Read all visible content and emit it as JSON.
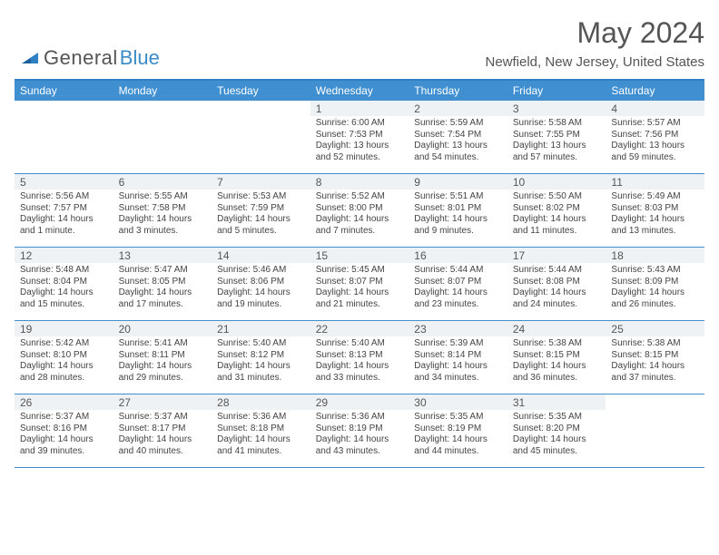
{
  "logo": {
    "text1": "General",
    "text2": "Blue"
  },
  "title": "May 2024",
  "location": "Newfield, New Jersey, United States",
  "colors": {
    "header_bg": "#3f8fd1",
    "header_border": "#2f7fc4",
    "daynum_bg": "#eef2f5",
    "text": "#555555",
    "body_text": "#444444"
  },
  "day_names": [
    "Sunday",
    "Monday",
    "Tuesday",
    "Wednesday",
    "Thursday",
    "Friday",
    "Saturday"
  ],
  "weeks": [
    [
      {
        "n": "",
        "sr": "",
        "ss": "",
        "dl": ""
      },
      {
        "n": "",
        "sr": "",
        "ss": "",
        "dl": ""
      },
      {
        "n": "",
        "sr": "",
        "ss": "",
        "dl": ""
      },
      {
        "n": "1",
        "sr": "6:00 AM",
        "ss": "7:53 PM",
        "dl": "13 hours and 52 minutes."
      },
      {
        "n": "2",
        "sr": "5:59 AM",
        "ss": "7:54 PM",
        "dl": "13 hours and 54 minutes."
      },
      {
        "n": "3",
        "sr": "5:58 AM",
        "ss": "7:55 PM",
        "dl": "13 hours and 57 minutes."
      },
      {
        "n": "4",
        "sr": "5:57 AM",
        "ss": "7:56 PM",
        "dl": "13 hours and 59 minutes."
      }
    ],
    [
      {
        "n": "5",
        "sr": "5:56 AM",
        "ss": "7:57 PM",
        "dl": "14 hours and 1 minute."
      },
      {
        "n": "6",
        "sr": "5:55 AM",
        "ss": "7:58 PM",
        "dl": "14 hours and 3 minutes."
      },
      {
        "n": "7",
        "sr": "5:53 AM",
        "ss": "7:59 PM",
        "dl": "14 hours and 5 minutes."
      },
      {
        "n": "8",
        "sr": "5:52 AM",
        "ss": "8:00 PM",
        "dl": "14 hours and 7 minutes."
      },
      {
        "n": "9",
        "sr": "5:51 AM",
        "ss": "8:01 PM",
        "dl": "14 hours and 9 minutes."
      },
      {
        "n": "10",
        "sr": "5:50 AM",
        "ss": "8:02 PM",
        "dl": "14 hours and 11 minutes."
      },
      {
        "n": "11",
        "sr": "5:49 AM",
        "ss": "8:03 PM",
        "dl": "14 hours and 13 minutes."
      }
    ],
    [
      {
        "n": "12",
        "sr": "5:48 AM",
        "ss": "8:04 PM",
        "dl": "14 hours and 15 minutes."
      },
      {
        "n": "13",
        "sr": "5:47 AM",
        "ss": "8:05 PM",
        "dl": "14 hours and 17 minutes."
      },
      {
        "n": "14",
        "sr": "5:46 AM",
        "ss": "8:06 PM",
        "dl": "14 hours and 19 minutes."
      },
      {
        "n": "15",
        "sr": "5:45 AM",
        "ss": "8:07 PM",
        "dl": "14 hours and 21 minutes."
      },
      {
        "n": "16",
        "sr": "5:44 AM",
        "ss": "8:07 PM",
        "dl": "14 hours and 23 minutes."
      },
      {
        "n": "17",
        "sr": "5:44 AM",
        "ss": "8:08 PM",
        "dl": "14 hours and 24 minutes."
      },
      {
        "n": "18",
        "sr": "5:43 AM",
        "ss": "8:09 PM",
        "dl": "14 hours and 26 minutes."
      }
    ],
    [
      {
        "n": "19",
        "sr": "5:42 AM",
        "ss": "8:10 PM",
        "dl": "14 hours and 28 minutes."
      },
      {
        "n": "20",
        "sr": "5:41 AM",
        "ss": "8:11 PM",
        "dl": "14 hours and 29 minutes."
      },
      {
        "n": "21",
        "sr": "5:40 AM",
        "ss": "8:12 PM",
        "dl": "14 hours and 31 minutes."
      },
      {
        "n": "22",
        "sr": "5:40 AM",
        "ss": "8:13 PM",
        "dl": "14 hours and 33 minutes."
      },
      {
        "n": "23",
        "sr": "5:39 AM",
        "ss": "8:14 PM",
        "dl": "14 hours and 34 minutes."
      },
      {
        "n": "24",
        "sr": "5:38 AM",
        "ss": "8:15 PM",
        "dl": "14 hours and 36 minutes."
      },
      {
        "n": "25",
        "sr": "5:38 AM",
        "ss": "8:15 PM",
        "dl": "14 hours and 37 minutes."
      }
    ],
    [
      {
        "n": "26",
        "sr": "5:37 AM",
        "ss": "8:16 PM",
        "dl": "14 hours and 39 minutes."
      },
      {
        "n": "27",
        "sr": "5:37 AM",
        "ss": "8:17 PM",
        "dl": "14 hours and 40 minutes."
      },
      {
        "n": "28",
        "sr": "5:36 AM",
        "ss": "8:18 PM",
        "dl": "14 hours and 41 minutes."
      },
      {
        "n": "29",
        "sr": "5:36 AM",
        "ss": "8:19 PM",
        "dl": "14 hours and 43 minutes."
      },
      {
        "n": "30",
        "sr": "5:35 AM",
        "ss": "8:19 PM",
        "dl": "14 hours and 44 minutes."
      },
      {
        "n": "31",
        "sr": "5:35 AM",
        "ss": "8:20 PM",
        "dl": "14 hours and 45 minutes."
      },
      {
        "n": "",
        "sr": "",
        "ss": "",
        "dl": ""
      }
    ]
  ],
  "labels": {
    "sunrise": "Sunrise: ",
    "sunset": "Sunset: ",
    "daylight": "Daylight: "
  }
}
